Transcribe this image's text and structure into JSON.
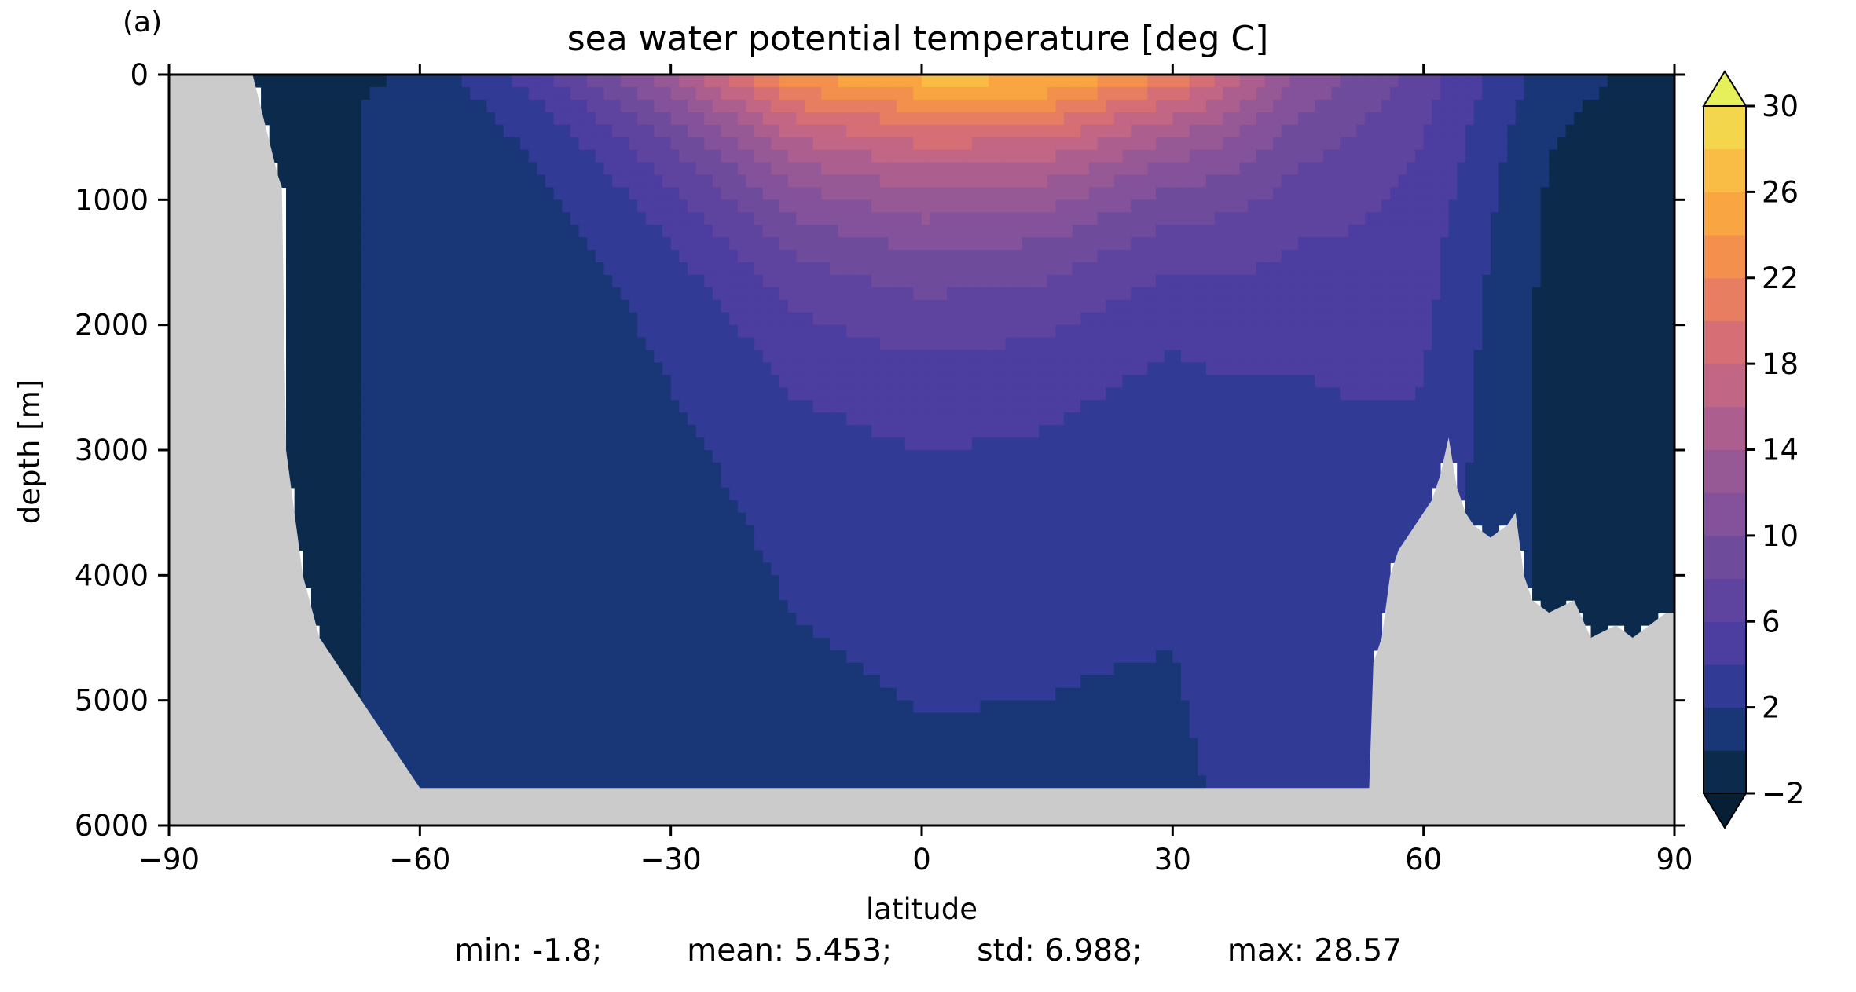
{
  "panel_label": "(a)",
  "stats": {
    "min": "min: -1.8;",
    "mean": "mean: 5.453;",
    "std": "std: 6.988;",
    "max": "max: 28.57"
  },
  "colors": {
    "land": "#cbcbcb",
    "levels": [
      "#0b2a4c",
      "#193677",
      "#313a95",
      "#4c3da0",
      "#5e449e",
      "#6f4b9c",
      "#83529a",
      "#975996",
      "#ac5f8f",
      "#c16684",
      "#d66f75",
      "#e77e62",
      "#f3904e",
      "#f9a542",
      "#f9bc44",
      "#f3d64c",
      "#e7f05a"
    ],
    "extend_min": "#061f34",
    "extend_max": "#e6f05a"
  },
  "chart_data": {
    "type": "heatmap",
    "title": "sea water potential temperature [deg C]",
    "xlabel": "latitude",
    "ylabel": "depth [m]",
    "xlim": [
      -90,
      90
    ],
    "ylim": [
      6000,
      0
    ],
    "xticks": [
      -90,
      -60,
      -30,
      0,
      30,
      60,
      90
    ],
    "yticks": [
      0,
      1000,
      2000,
      3000,
      4000,
      5000,
      6000
    ],
    "xtick_labels": [
      "−90",
      "−60",
      "−30",
      "0",
      "30",
      "60",
      "90"
    ],
    "ytick_labels": [
      "0",
      "1000",
      "2000",
      "3000",
      "4000",
      "5000",
      "6000"
    ],
    "colorbar": {
      "levels": [
        -2,
        0,
        2,
        4,
        6,
        8,
        10,
        12,
        14,
        16,
        18,
        20,
        22,
        24,
        26,
        28,
        30
      ],
      "tick_values": [
        -2,
        2,
        6,
        10,
        14,
        18,
        22,
        26,
        30
      ],
      "tick_labels": [
        "−2",
        "2",
        "6",
        "10",
        "14",
        "18",
        "22",
        "26",
        "30"
      ],
      "extend": "both"
    },
    "bottom_topography": {
      "lat": [
        -90,
        -80,
        -77,
        -76.5,
        -76,
        -74,
        -72,
        -70,
        -68,
        -66,
        -64,
        -62,
        -60,
        -57,
        -55,
        -50,
        -40,
        -35,
        -30,
        0,
        30,
        53.5,
        54,
        55,
        56,
        57,
        59,
        60,
        61,
        62,
        63,
        64,
        65,
        66,
        68,
        70,
        71,
        72,
        73,
        75,
        78,
        80,
        83,
        85,
        87,
        89,
        90
      ],
      "depth": [
        0,
        0,
        800,
        900,
        3000,
        4000,
        4500,
        4700,
        4900,
        5100,
        5300,
        5500,
        5700,
        5700,
        5700,
        5700,
        5700,
        5700,
        5700,
        5700,
        5700,
        5700,
        4700,
        4500,
        4000,
        3800,
        3600,
        3500,
        3400,
        3200,
        2900,
        3300,
        3500,
        3600,
        3700,
        3600,
        3500,
        4000,
        4200,
        4300,
        4200,
        4500,
        4400,
        4500,
        4400,
        4300,
        4300
      ]
    },
    "temperature_section": {
      "note_lat": [
        -75,
        -60,
        -45,
        -30,
        -15,
        0,
        15,
        30,
        45,
        60,
        75,
        90
      ],
      "surface_values": [
        -1.5,
        0.5,
        6,
        14,
        24,
        27,
        27,
        22,
        12,
        7,
        1,
        -1
      ],
      "thermocline_scale_m": [
        0,
        200,
        500,
        900,
        1200,
        1300,
        1200,
        1000,
        1400,
        2000,
        600,
        200
      ],
      "deep_values": [
        -0.5,
        0.5,
        1.0,
        1.2,
        1.4,
        1.5,
        1.6,
        1.8,
        2.2,
        2.8,
        -0.5,
        -0.8
      ]
    },
    "grid": false,
    "legend": "none"
  }
}
